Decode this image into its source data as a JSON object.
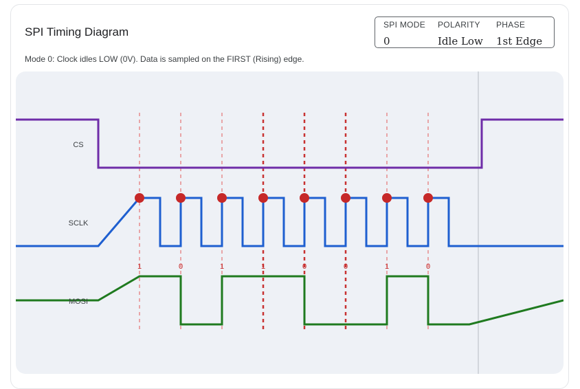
{
  "header": {
    "title": "SPI Timing Diagram",
    "subtitle": "Mode 0: Clock idles LOW (0V). Data is sampled on the FIRST (Rising) edge."
  },
  "info_panel": {
    "columns": [
      {
        "label": "SPI MODE",
        "value": "0"
      },
      {
        "label": "POLARITY",
        "value": "Idle Low"
      },
      {
        "label": "PHASE",
        "value": "1st Edge"
      }
    ]
  },
  "diagram": {
    "signals": [
      {
        "name": "CS",
        "color": "#6f2da8"
      },
      {
        "name": "SCLK",
        "color": "#1e5fd0"
      },
      {
        "name": "MOSI",
        "color": "#1f7a1f"
      }
    ],
    "bits": [
      "1",
      "0",
      "1",
      "1",
      "0",
      "0",
      "1",
      "0"
    ],
    "colors": {
      "sample_marker": "#c62828",
      "sample_line": "#e57373",
      "cursor": "#c9cdd3",
      "bit_label": "#c62828",
      "signal_label": "#3c4043"
    }
  }
}
